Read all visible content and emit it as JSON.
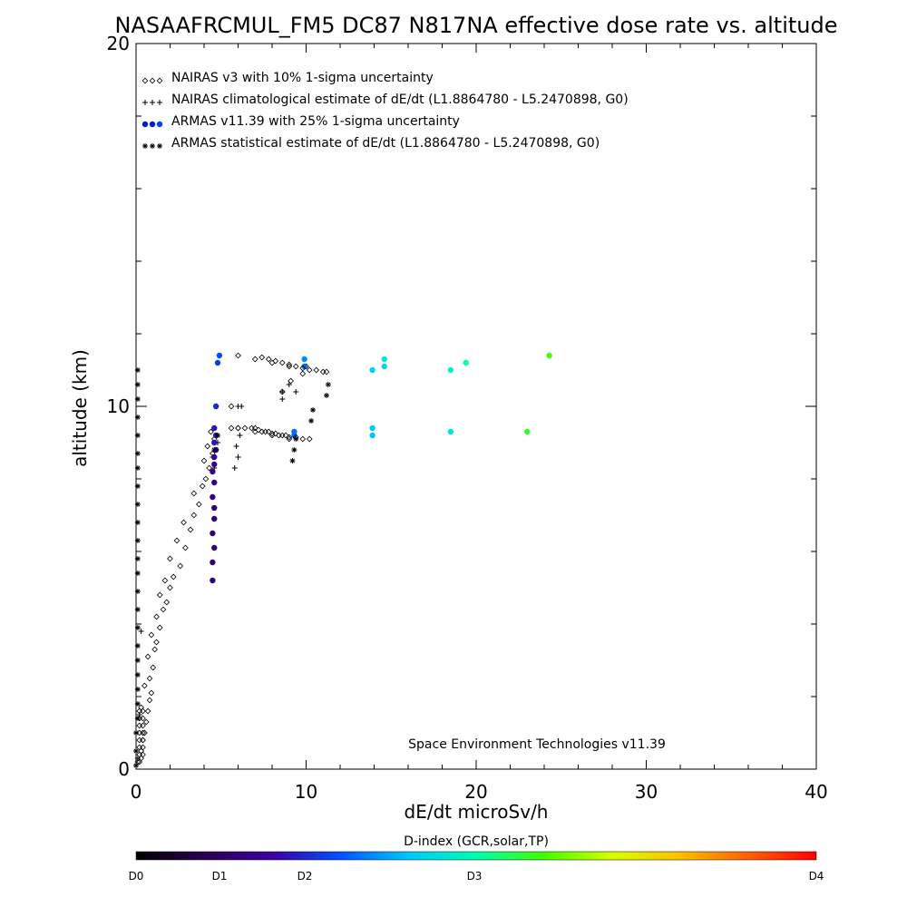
{
  "chart_data": {
    "type": "scatter",
    "title": "NASAAFRCMUL_FM5 DC87 N817NA effective dose rate vs. altitude",
    "xlabel": "dE/dt microSv/h",
    "ylabel": "altitude (km)",
    "xlim": [
      0,
      40
    ],
    "ylim": [
      0,
      20
    ],
    "x_ticks": [
      "0",
      "10",
      "20",
      "30",
      "40"
    ],
    "y_ticks": [
      "0",
      "10",
      "20"
    ],
    "grid": false,
    "legend_position": "top-left",
    "credit": "Space Environment Technologies v11.39",
    "colorbar": {
      "title": "D-index (GCR,solar,TP)",
      "ticks": [
        {
          "label": "D0",
          "value": 0
        },
        {
          "label": "D1",
          "value": 1
        },
        {
          "label": "D2",
          "value": 2
        },
        {
          "label": "D3",
          "value": 3
        },
        {
          "label": "D4",
          "value": 4
        }
      ],
      "stops": [
        "#000000",
        "#2a0050",
        "#3c00a0",
        "#0050ff",
        "#00c8ff",
        "#00ffb0",
        "#40ff00",
        "#d8ff00",
        "#ffc000",
        "#ff6000",
        "#ff0000"
      ]
    },
    "series": [
      {
        "name": "NAIRAS v3 with 10% 1-sigma uncertainty",
        "marker": "diamond",
        "color": "#000000",
        "points": [
          [
            0.1,
            0.2
          ],
          [
            0.3,
            0.5
          ],
          [
            0.4,
            0.8
          ],
          [
            0.5,
            1.0
          ],
          [
            0.6,
            1.3
          ],
          [
            0.7,
            1.6
          ],
          [
            0.8,
            1.9
          ],
          [
            0.9,
            2.1
          ],
          [
            0.5,
            2.3
          ],
          [
            0.8,
            2.5
          ],
          [
            1.0,
            2.8
          ],
          [
            0.7,
            3.1
          ],
          [
            1.1,
            3.3
          ],
          [
            1.2,
            3.5
          ],
          [
            0.9,
            3.7
          ],
          [
            1.4,
            3.9
          ],
          [
            1.2,
            4.2
          ],
          [
            1.6,
            4.4
          ],
          [
            1.8,
            4.6
          ],
          [
            1.4,
            4.8
          ],
          [
            2.0,
            5.0
          ],
          [
            1.7,
            5.2
          ],
          [
            2.2,
            5.3
          ],
          [
            2.6,
            5.6
          ],
          [
            2.0,
            5.8
          ],
          [
            2.9,
            6.1
          ],
          [
            2.4,
            6.3
          ],
          [
            3.2,
            6.6
          ],
          [
            2.8,
            6.8
          ],
          [
            3.4,
            7.0
          ],
          [
            3.7,
            7.3
          ],
          [
            3.4,
            7.6
          ],
          [
            3.9,
            7.8
          ],
          [
            4.1,
            8.0
          ],
          [
            4.3,
            8.3
          ],
          [
            4.0,
            8.5
          ],
          [
            4.5,
            8.7
          ],
          [
            4.2,
            8.9
          ],
          [
            4.6,
            9.1
          ],
          [
            4.4,
            9.3
          ],
          [
            6.0,
            9.4
          ],
          [
            7.0,
            9.3
          ],
          [
            8.0,
            9.2
          ],
          [
            9.0,
            9.1
          ],
          [
            5.6,
            10.0
          ],
          [
            8.6,
            10.4
          ],
          [
            9.1,
            10.7
          ],
          [
            9.8,
            10.9
          ],
          [
            6.0,
            11.4
          ],
          [
            7.0,
            11.3
          ],
          [
            8.0,
            11.2
          ],
          [
            9.0,
            11.1
          ],
          [
            10.0,
            11.1
          ]
        ]
      },
      {
        "name": "NAIRAS climatological estimate of dE/dt (L1.8864780 - L5.2470898, G0)",
        "marker": "plus",
        "color": "#000000",
        "points": [
          [
            0.1,
            0.3
          ],
          [
            0.2,
            1.5
          ],
          [
            0.3,
            3.8
          ],
          [
            4.6,
            8.3
          ],
          [
            4.5,
            8.6
          ],
          [
            4.8,
            9.0
          ],
          [
            5.8,
            8.3
          ],
          [
            6.0,
            8.6
          ],
          [
            5.9,
            8.9
          ],
          [
            6.1,
            9.2
          ],
          [
            6.0,
            10.0
          ],
          [
            6.2,
            10.0
          ],
          [
            8.6,
            10.4
          ],
          [
            8.6,
            10.2
          ],
          [
            9.0,
            10.6
          ],
          [
            9.4,
            10.4
          ]
        ]
      },
      {
        "name": "ARMAS v11.39 with 25% 1-sigma uncertainty",
        "marker": "dot",
        "color": "#0000ff",
        "points": [
          [
            4.5,
            5.2
          ],
          [
            4.5,
            5.7
          ],
          [
            4.6,
            6.1
          ],
          [
            4.5,
            6.5
          ],
          [
            4.6,
            6.9
          ],
          [
            4.6,
            7.2
          ],
          [
            4.5,
            7.5
          ],
          [
            4.6,
            7.9
          ],
          [
            4.5,
            8.2
          ],
          [
            4.6,
            8.4
          ],
          [
            4.6,
            8.6
          ],
          [
            4.7,
            8.8
          ],
          [
            4.6,
            9.0
          ],
          [
            4.7,
            9.2
          ],
          [
            4.6,
            9.4
          ],
          [
            4.7,
            10.0
          ],
          [
            4.8,
            11.2
          ],
          [
            4.9,
            11.4
          ],
          [
            9.3,
            9.2
          ],
          [
            9.3,
            9.3
          ],
          [
            9.9,
            11.1
          ],
          [
            9.9,
            11.3
          ],
          [
            13.9,
            9.2
          ],
          [
            13.9,
            9.4
          ],
          [
            13.9,
            11.0
          ],
          [
            14.6,
            11.1
          ],
          [
            14.6,
            11.3
          ],
          [
            18.5,
            9.3
          ],
          [
            18.5,
            11.0
          ],
          [
            19.4,
            11.2
          ],
          [
            23.0,
            9.3
          ],
          [
            24.3,
            11.4
          ]
        ],
        "d_index": [
          0.6,
          0.6,
          0.6,
          0.6,
          0.6,
          0.6,
          0.7,
          0.7,
          0.7,
          0.8,
          0.8,
          0.8,
          0.9,
          0.9,
          0.9,
          1.0,
          1.1,
          1.2,
          1.3,
          1.3,
          1.3,
          1.4,
          1.6,
          1.6,
          1.7,
          1.7,
          1.8,
          1.8,
          1.9,
          2.0,
          2.3,
          2.4
        ]
      },
      {
        "name": "ARMAS statistical estimate of dE/dt (L1.8864780 - L5.2470898, G0)",
        "marker": "star",
        "color": "#000000",
        "points": [
          [
            0.0,
            0.1
          ],
          [
            0.0,
            0.5
          ],
          [
            0.0,
            1.0
          ],
          [
            0.1,
            1.4
          ],
          [
            0.1,
            1.8
          ],
          [
            0.1,
            2.2
          ],
          [
            0.1,
            2.6
          ],
          [
            0.1,
            3.0
          ],
          [
            0.1,
            3.4
          ],
          [
            0.1,
            3.9
          ],
          [
            0.1,
            4.4
          ],
          [
            0.1,
            4.9
          ],
          [
            0.1,
            5.4
          ],
          [
            0.1,
            5.8
          ],
          [
            0.1,
            6.3
          ],
          [
            0.1,
            6.8
          ],
          [
            0.1,
            7.3
          ],
          [
            0.1,
            7.8
          ],
          [
            0.1,
            8.3
          ],
          [
            0.1,
            8.7
          ],
          [
            0.1,
            9.2
          ],
          [
            0.1,
            9.7
          ],
          [
            0.1,
            10.2
          ],
          [
            0.1,
            10.6
          ],
          [
            0.1,
            11.0
          ],
          [
            4.6,
            8.8
          ],
          [
            4.8,
            9.2
          ],
          [
            9.2,
            8.5
          ],
          [
            9.3,
            8.8
          ],
          [
            9.4,
            9.1
          ],
          [
            10.3,
            9.6
          ],
          [
            10.4,
            9.9
          ],
          [
            11.2,
            10.3
          ],
          [
            11.3,
            10.6
          ]
        ]
      },
      {
        "name": "",
        "marker": "diamond",
        "color": "#000000",
        "points": [
          [
            0.2,
            0.2
          ],
          [
            0.2,
            0.4
          ],
          [
            0.2,
            0.6
          ],
          [
            0.2,
            0.8
          ],
          [
            0.2,
            1.0
          ],
          [
            0.2,
            1.2
          ],
          [
            0.2,
            1.4
          ],
          [
            0.2,
            1.6
          ],
          [
            0.4,
            0.4
          ],
          [
            0.4,
            0.6
          ],
          [
            0.4,
            0.8
          ],
          [
            0.4,
            1.0
          ],
          [
            0.4,
            1.2
          ],
          [
            0.4,
            1.4
          ],
          [
            0.4,
            1.6
          ],
          [
            0.3,
            0.3
          ],
          [
            0.3,
            1.7
          ],
          [
            7.0,
            9.4
          ],
          [
            7.2,
            9.35
          ],
          [
            7.4,
            9.3
          ],
          [
            7.6,
            9.3
          ],
          [
            7.8,
            9.3
          ],
          [
            8.0,
            9.25
          ],
          [
            8.2,
            9.25
          ],
          [
            8.4,
            9.2
          ],
          [
            8.6,
            9.2
          ],
          [
            8.8,
            9.2
          ],
          [
            9.0,
            9.15
          ],
          [
            9.4,
            9.15
          ],
          [
            9.8,
            9.1
          ],
          [
            10.2,
            9.1
          ],
          [
            5.6,
            9.4
          ],
          [
            6.0,
            9.4
          ],
          [
            6.4,
            9.4
          ],
          [
            6.8,
            9.4
          ],
          [
            7.4,
            11.35
          ],
          [
            7.8,
            11.3
          ],
          [
            8.2,
            11.25
          ],
          [
            8.6,
            11.2
          ],
          [
            9.0,
            11.15
          ],
          [
            9.4,
            11.1
          ],
          [
            9.8,
            11.05
          ],
          [
            10.2,
            11.0
          ],
          [
            10.6,
            11.0
          ],
          [
            11.0,
            10.95
          ],
          [
            11.2,
            10.95
          ]
        ]
      }
    ]
  }
}
